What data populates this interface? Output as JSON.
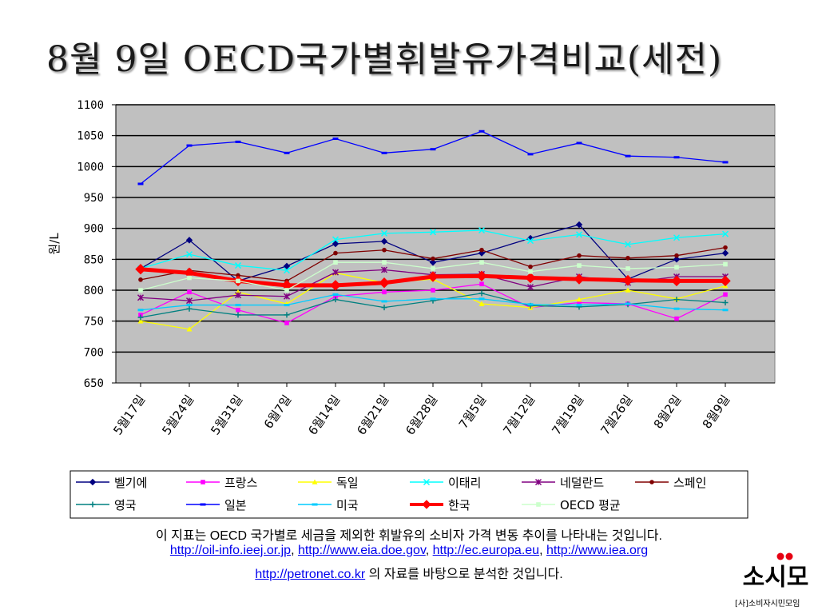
{
  "title": "8월 9일 OECD국가별휘발유가격비교(세전)",
  "chart_data": {
    "type": "line",
    "ylabel": "원/L",
    "ylim": [
      650,
      1100
    ],
    "yticks": [
      650,
      700,
      750,
      800,
      850,
      900,
      950,
      1000,
      1050,
      1100
    ],
    "grid": true,
    "legend_position": "bottom",
    "categories": [
      "5월17일",
      "5월24일",
      "5월31일",
      "6월7일",
      "6월14일",
      "6월21일",
      "6월28일",
      "7월5일",
      "7월12일",
      "7월19일",
      "7월26일",
      "8월2일",
      "8월9일"
    ],
    "series": [
      {
        "name": "벨기에",
        "color": "#000080",
        "marker": "diamond",
        "values": [
          835,
          881,
          815,
          839,
          875,
          879,
          845,
          860,
          884,
          906,
          818,
          850,
          860
        ]
      },
      {
        "name": "프랑스",
        "color": "#ff00ff",
        "marker": "square",
        "values": [
          760,
          797,
          768,
          747,
          790,
          797,
          800,
          810,
          772,
          780,
          778,
          754,
          793
        ]
      },
      {
        "name": "독일",
        "color": "#ffff00",
        "marker": "triangle",
        "values": [
          750,
          737,
          797,
          778,
          828,
          812,
          818,
          778,
          772,
          785,
          800,
          786,
          807
        ]
      },
      {
        "name": "이태리",
        "color": "#00ffff",
        "marker": "x",
        "values": [
          835,
          858,
          840,
          832,
          882,
          892,
          894,
          897,
          880,
          890,
          874,
          885,
          891
        ]
      },
      {
        "name": "네덜란드",
        "color": "#800080",
        "marker": "star",
        "values": [
          788,
          783,
          792,
          790,
          829,
          833,
          825,
          826,
          805,
          822,
          812,
          822,
          822
        ]
      },
      {
        "name": "스페인",
        "color": "#800000",
        "marker": "circle",
        "values": [
          817,
          832,
          824,
          815,
          860,
          865,
          851,
          865,
          838,
          856,
          852,
          856,
          869
        ]
      },
      {
        "name": "영국",
        "color": "#008080",
        "marker": "plus",
        "values": [
          756,
          770,
          760,
          760,
          785,
          772,
          783,
          795,
          775,
          773,
          777,
          785,
          780
        ]
      },
      {
        "name": "일본",
        "color": "#0000ff",
        "marker": "dash",
        "values": [
          972,
          1034,
          1040,
          1022,
          1045,
          1022,
          1028,
          1057,
          1020,
          1038,
          1017,
          1015,
          1007
        ]
      },
      {
        "name": "미국",
        "color": "#00ccff",
        "marker": "dash",
        "values": [
          768,
          776,
          776,
          776,
          793,
          782,
          786,
          786,
          777,
          776,
          778,
          770,
          768
        ]
      },
      {
        "name": "한국",
        "color": "#ff0000",
        "marker": "diamond",
        "thick": true,
        "values": [
          834,
          828,
          815,
          808,
          808,
          812,
          822,
          823,
          820,
          818,
          816,
          815,
          815
        ]
      },
      {
        "name": "OECD 평균",
        "color": "#ccffcc",
        "marker": "square",
        "values": [
          800,
          820,
          815,
          800,
          845,
          845,
          835,
          845,
          830,
          840,
          835,
          837,
          842
        ]
      }
    ]
  },
  "footer": {
    "line1": "이 지표는 OECD 국가별로 세금을 제외한 휘발유의 소비자 가격 변동 추이를 나타내는 것입니다.",
    "link1": "http://oil-info.ieej.or.jp",
    "link2": "http://www.eia.doe.gov",
    "link3": "http://ec.europa.eu",
    "link4": "http://www.iea.org",
    "link5": "http://petronet.co.kr",
    "comma": ", ",
    "suffix": " 의 자료를 바탕으로 분석한 것입니다."
  },
  "logo": {
    "mark": "소시모",
    "subtitle": "[사]소비자시민모임"
  }
}
